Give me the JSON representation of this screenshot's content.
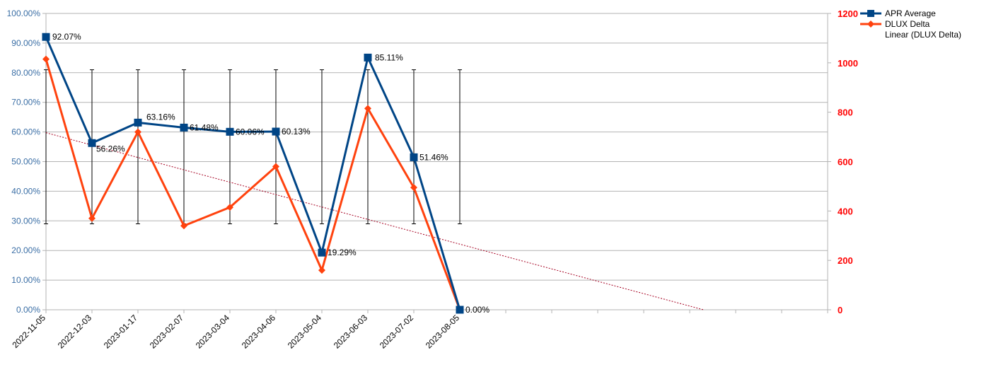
{
  "chart_data": {
    "type": "line",
    "categories": [
      "2022-11-05",
      "2022-12-03",
      "2023-01-17",
      "2023-02-07",
      "2023-03-04",
      "2023-04-06",
      "2023-05-04",
      "2023-06-03",
      "2023-07-02",
      "2023-08-05"
    ],
    "series": [
      {
        "name": "APR Average",
        "axis": "left",
        "color": "#004586",
        "marker": "square",
        "values": [
          92.07,
          56.26,
          63.16,
          61.48,
          60.06,
          60.13,
          19.29,
          85.11,
          51.46,
          0.0
        ],
        "labels": [
          "92.07%",
          "56.26%",
          "63.16%",
          "61.48%",
          "60.06%",
          "60.13%",
          "19.29%",
          "85.11%",
          "51.46%",
          "0.00%"
        ]
      },
      {
        "name": "DLUX Delta",
        "axis": "right",
        "color": "#ff420e",
        "marker": "diamond",
        "values": [
          1015,
          370,
          720,
          340,
          415,
          580,
          160,
          815,
          495,
          0
        ]
      }
    ],
    "trendline": {
      "name": "Linear (DLUX Delta)",
      "of_series": "DLUX Delta",
      "color": "#a50021",
      "style": "dotted",
      "start": [
        0,
        717
      ],
      "end": [
        14.3,
        0
      ]
    },
    "error_bars": {
      "low": 29,
      "high": 81,
      "axis": "left"
    },
    "left_axis": {
      "ylim": [
        0,
        100
      ],
      "ticks": [
        "0.00%",
        "10.00%",
        "20.00%",
        "30.00%",
        "40.00%",
        "50.00%",
        "60.00%",
        "70.00%",
        "80.00%",
        "90.00%",
        "100.00%"
      ],
      "color": "#3a6ea5"
    },
    "right_axis": {
      "ylim": [
        0,
        1200
      ],
      "ticks": [
        "0",
        "200",
        "400",
        "600",
        "800",
        "1000",
        "1200"
      ],
      "color": "#ff0000"
    },
    "x_slots": 17,
    "grid": true,
    "legend_position": "top-right"
  }
}
